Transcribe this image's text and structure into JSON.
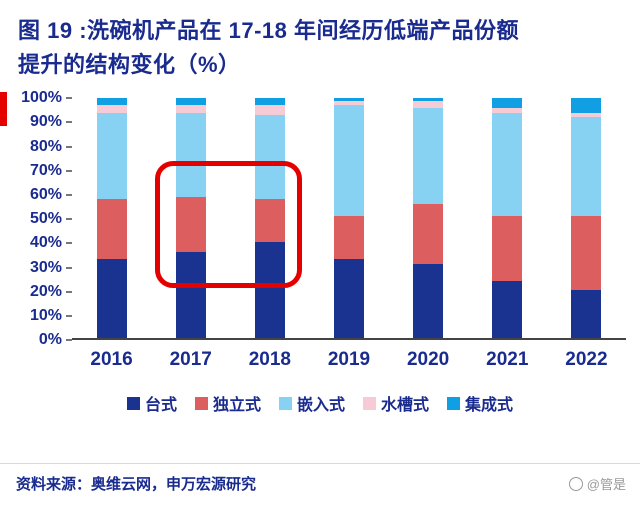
{
  "title": {
    "line1": "图 19 :洗碗机产品在 17-18 年间经历低端产品份额",
    "line2": "提升的结构变化（%）"
  },
  "chart_data": {
    "type": "bar",
    "stacked": true,
    "title": "洗碗机产品在 17-18 年间经历低端产品份额提升的结构变化（%）",
    "categories": [
      "2016",
      "2017",
      "2018",
      "2019",
      "2020",
      "2021",
      "2022"
    ],
    "series": [
      {
        "name": "台式",
        "color": "#1b3390",
        "values": [
          33,
          36,
          40,
          33,
          31,
          24,
          20
        ]
      },
      {
        "name": "独立式",
        "color": "#dd5e5e",
        "values": [
          25,
          23,
          18,
          18,
          25,
          27,
          31
        ]
      },
      {
        "name": "嵌入式",
        "color": "#87d2f2",
        "values": [
          36,
          35,
          35,
          46,
          40,
          43,
          41
        ]
      },
      {
        "name": "水槽式",
        "color": "#f6cbd5",
        "values": [
          3,
          3,
          4,
          2,
          3,
          2,
          2
        ]
      },
      {
        "name": "集成式",
        "color": "#119fe4",
        "values": [
          3,
          3,
          3,
          1,
          1,
          4,
          6
        ]
      }
    ],
    "ylim": [
      0,
      100
    ],
    "yticks": [
      "100%",
      "90%",
      "80%",
      "70%",
      "60%",
      "50%",
      "40%",
      "30%",
      "20%",
      "10%",
      "0%"
    ],
    "grid": false,
    "legend_position": "bottom",
    "highlight": {
      "shape": "red-rounded-box",
      "categories": [
        "2017",
        "2018"
      ],
      "color": "#e50000"
    }
  },
  "footer": {
    "source": "资料来源：奥维云网，申万宏源研究",
    "watermark": "@管是"
  },
  "colors": {
    "title_navy": "#1a2b8f",
    "annotation_red": "#e50000",
    "axis_line": "#444444"
  }
}
